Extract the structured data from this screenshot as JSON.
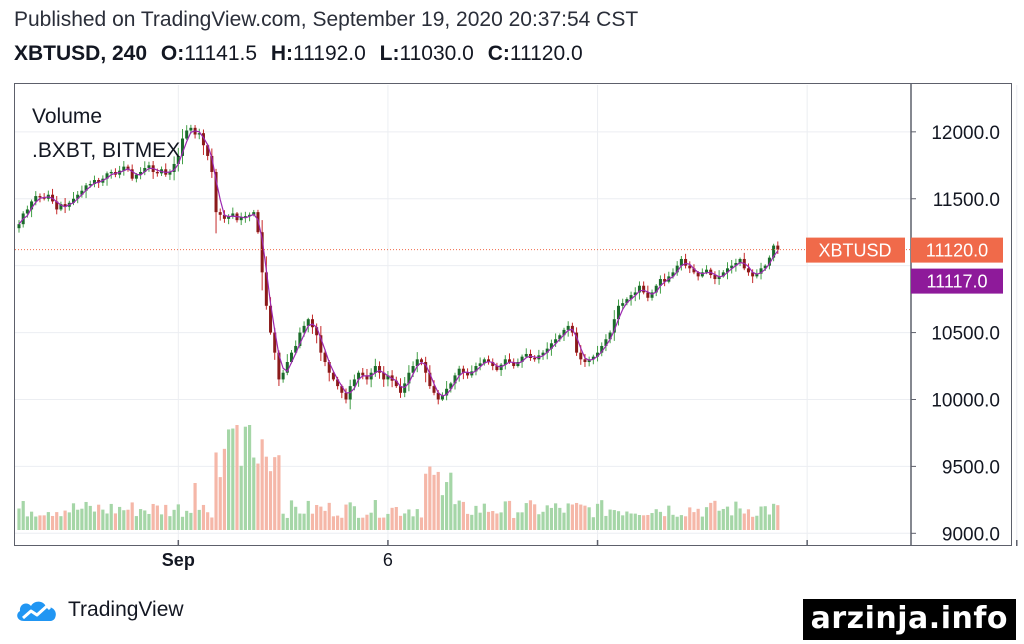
{
  "header": {
    "published": "Published on TradingView.com, September 19, 2020 20:37:54 CST",
    "symbol_interval": "XBTUSD, 240",
    "o_label": "O:",
    "o_value": "11141.5",
    "h_label": "H:",
    "h_value": "11192.0",
    "l_label": "L:",
    "l_value": "11030.0",
    "c_label": "C:",
    "c_value": "11120.0"
  },
  "footer": {
    "brand": "TradingView"
  },
  "watermark": "arzinja.info",
  "colors": {
    "up": "#26a69a",
    "down": "#ef5350",
    "candle_body_up": "#1b6b2b",
    "candle_body_down": "#8b1a1a",
    "ma_line": "#9c27b0",
    "vol_up": "#a5d6a7",
    "vol_down": "#f5b7a8",
    "price_label_bg": "#f06a4a",
    "ma_label_bg": "#8e1a9a"
  },
  "chart_data": {
    "type": "candlestick",
    "legend": [
      "Volume",
      ".BXBT, BITMEX"
    ],
    "xticks": [
      {
        "label": "Sep",
        "bold": true,
        "index": 38
      },
      {
        "label": "6",
        "bold": false,
        "index": 88
      },
      {
        "label": "",
        "bold": false,
        "index": 138
      },
      {
        "label": "",
        "bold": false,
        "index": 188
      },
      {
        "label": "",
        "bold": false,
        "index": 238
      }
    ],
    "yticks": [
      "12000.0",
      "11500.0",
      "10500.0",
      "10000.0",
      "9500.0",
      "9000.0"
    ],
    "ylim": [
      8950,
      12350
    ],
    "last_price": {
      "label": "XBTUSD",
      "value": "11120.0",
      "y": 11120
    },
    "ma_value": {
      "value": "11117.0",
      "y": 11117
    },
    "closes": [
      11310,
      11390,
      11420,
      11480,
      11520,
      11510,
      11500,
      11530,
      11480,
      11420,
      11460,
      11440,
      11470,
      11500,
      11530,
      11560,
      11600,
      11610,
      11640,
      11620,
      11650,
      11690,
      11700,
      11680,
      11710,
      11740,
      11720,
      11650,
      11680,
      11700,
      11730,
      11750,
      11700,
      11690,
      11720,
      11680,
      11700,
      11760,
      11820,
      11950,
      12010,
      12030,
      11980,
      11990,
      11900,
      11820,
      11700,
      11400,
      11380,
      11350,
      11370,
      11390,
      11340,
      11360,
      11370,
      11380,
      11400,
      11250,
      10950,
      10700,
      10500,
      10350,
      10150,
      10200,
      10280,
      10350,
      10400,
      10500,
      10550,
      10600,
      10540,
      10480,
      10350,
      10280,
      10200,
      10150,
      10100,
      10050,
      10000,
      10100,
      10150,
      10200,
      10180,
      10150,
      10200,
      10250,
      10200,
      10150,
      10180,
      10140,
      10100,
      10050,
      10120,
      10200,
      10250,
      10300,
      10280,
      10200,
      10100,
      10050,
      10000,
      10030,
      10080,
      10120,
      10180,
      10230,
      10200,
      10180,
      10210,
      10250,
      10270,
      10300,
      10280,
      10250,
      10220,
      10260,
      10300,
      10280,
      10250,
      10280,
      10320,
      10340,
      10310,
      10300,
      10330,
      10350,
      10380,
      10420,
      10450,
      10480,
      10520,
      10550,
      10500,
      10350,
      10300,
      10280,
      10300,
      10320,
      10350,
      10400,
      10450,
      10500,
      10600,
      10700,
      10720,
      10750,
      10780,
      10800,
      10850,
      10800,
      10760,
      10800,
      10850,
      10900,
      10880,
      10920,
      10950,
      11000,
      11050,
      11000,
      10980,
      10950,
      10920,
      10950,
      10970,
      10930,
      10900,
      10920,
      10950,
      10980,
      11000,
      11020,
      11050,
      10980,
      10950,
      10920,
      10940,
      10980,
      11000,
      11060,
      11150,
      11120
    ]
  }
}
